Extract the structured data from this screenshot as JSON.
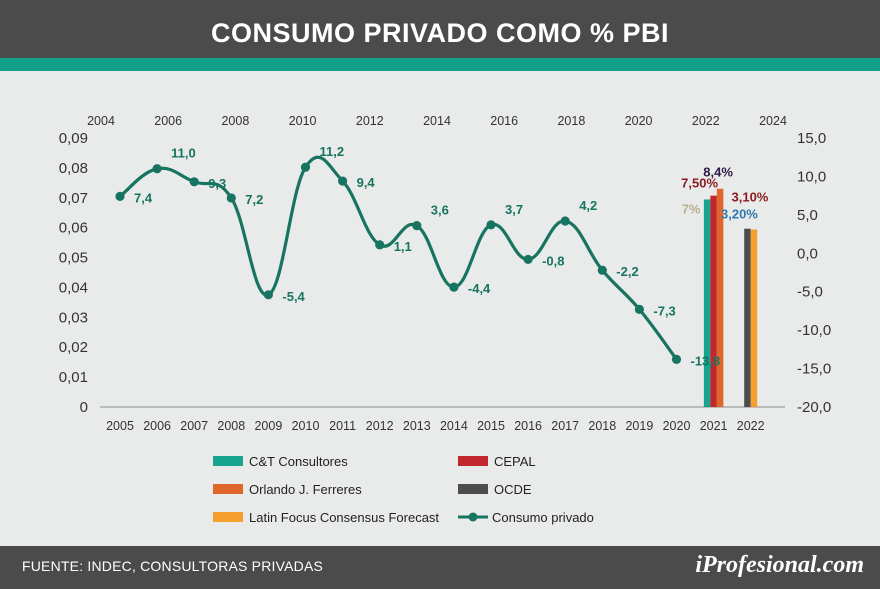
{
  "header": {
    "title": "CONSUMO PRIVADO COMO % PBI"
  },
  "footer": {
    "source": "FUENTE: INDEC, CONSULTORAS PRIVADAS",
    "brand": "iProfesional.com"
  },
  "colors": {
    "line": "#177460",
    "cyt": "#17a590",
    "cepal": "#c2272d",
    "ferreres": "#e0672b",
    "ocde": "#4d4d4d",
    "latin": "#f5a02d"
  },
  "chart_data": {
    "type": "line",
    "top_axis": {
      "ticks": [
        "2004",
        "2006",
        "2008",
        "2010",
        "2012",
        "2014",
        "2016",
        "2018",
        "2020",
        "2022",
        "2024"
      ]
    },
    "bottom_axis": {
      "ticks": [
        "2005",
        "2006",
        "2007",
        "2008",
        "2009",
        "2010",
        "2011",
        "2012",
        "2013",
        "2014",
        "2015",
        "2016",
        "2017",
        "2018",
        "2019",
        "2020",
        "2021",
        "2022"
      ]
    },
    "left_axis": {
      "ticks": [
        "0,09",
        "0,08",
        "0,07",
        "0,06",
        "0,05",
        "0,04",
        "0,03",
        "0,02",
        "0,01",
        "0"
      ],
      "range": [
        0,
        0.09
      ]
    },
    "right_axis": {
      "ticks": [
        "15,0",
        "10,0",
        "5,0",
        "0,0",
        "-5,0",
        "-10,0",
        "-15,0",
        "-20,0"
      ],
      "range": [
        -20,
        15
      ]
    },
    "series": [
      {
        "name": "Consumo privado",
        "color": "#177460",
        "x": [
          2005,
          2006,
          2007,
          2008,
          2009,
          2010,
          2011,
          2012,
          2013,
          2014,
          2015,
          2016,
          2017,
          2018,
          2019,
          2020
        ],
        "values": [
          7.4,
          11.0,
          9.3,
          7.2,
          -5.4,
          11.2,
          9.4,
          1.1,
          3.6,
          -4.4,
          3.7,
          -0.8,
          4.2,
          -2.2,
          -7.3,
          -13.8
        ],
        "labels": [
          "7,4",
          "11,0",
          "9,3",
          "7,2",
          "-5,4",
          "11,2",
          "9,4",
          "1,1",
          "3,6",
          "-4,4",
          "3,7",
          "-0,8",
          "4,2",
          "-2,2",
          "-7,3",
          "-13,8"
        ]
      }
    ],
    "bars": [
      {
        "name": "C&T Consultores",
        "year": 2021,
        "value": 7.0,
        "label": "7%",
        "color": "#17a590",
        "label_color": "#b8b08c"
      },
      {
        "name": "CEPAL",
        "year": 2021,
        "value": 7.5,
        "label": "7,50%",
        "color": "#c2272d",
        "label_color": "#8b1b1e"
      },
      {
        "name": "Orlando J. Ferreres",
        "year": 2021,
        "value": 8.4,
        "label": "8,4%",
        "color": "#e0672b",
        "label_color": "#2d1a4a"
      },
      {
        "name": "OCDE",
        "year": 2022,
        "value": 3.2,
        "label": "3,20%",
        "color": "#4d4d4d",
        "label_color": "#2a7ab0"
      },
      {
        "name": "Latin Focus Consensus Forecast",
        "year": 2022,
        "value": 3.1,
        "label": "3,10%",
        "color": "#f5a02d",
        "label_color": "#8b1b1e"
      }
    ],
    "legend": [
      {
        "label": "C&T Consultores",
        "color": "#17a590",
        "kind": "bar"
      },
      {
        "label": "CEPAL",
        "color": "#c2272d",
        "kind": "bar"
      },
      {
        "label": "Orlando J. Ferreres",
        "color": "#e0672b",
        "kind": "bar"
      },
      {
        "label": "OCDE",
        "color": "#4d4d4d",
        "kind": "bar"
      },
      {
        "label": "Latin Focus Consensus Forecast",
        "color": "#f5a02d",
        "kind": "bar"
      },
      {
        "label": "Consumo privado",
        "color": "#177460",
        "kind": "line"
      }
    ],
    "legend_position": "bottom"
  }
}
